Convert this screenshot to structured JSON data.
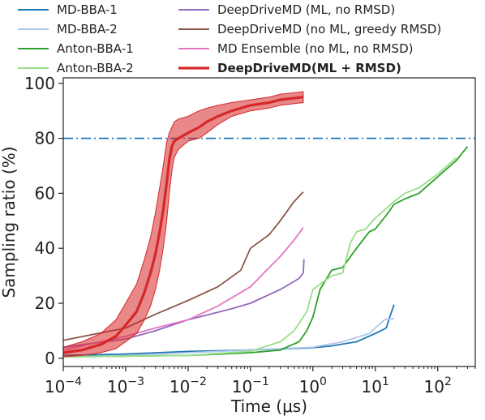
{
  "chart_data": {
    "type": "line",
    "xlabel": "Time (μs)",
    "ylabel": "Sampling ratio (%)",
    "xscale": "log",
    "xlim": [
      0.0001,
      400
    ],
    "ylim": [
      -3,
      102
    ],
    "xtick_labels": [
      {
        "v": 0.0001,
        "base": "10",
        "exp": "−4"
      },
      {
        "v": 0.001,
        "base": "10",
        "exp": "−3"
      },
      {
        "v": 0.01,
        "base": "10",
        "exp": "−2"
      },
      {
        "v": 0.1,
        "base": "10",
        "exp": "−1"
      },
      {
        "v": 1,
        "base": "10",
        "exp": "0"
      },
      {
        "v": 10,
        "base": "10",
        "exp": "1"
      },
      {
        "v": 100,
        "base": "10",
        "exp": "2"
      }
    ],
    "yticks": [
      0,
      20,
      40,
      60,
      80,
      100
    ],
    "hline": {
      "y": 80,
      "color": "#1f77b4",
      "style": "dashdot"
    },
    "legend_placement": "top",
    "series": [
      {
        "name": "MD-BBA-1",
        "color": "#1f77b4",
        "width": 1.8,
        "x": [
          0.0001,
          0.001,
          0.01,
          0.1,
          1,
          2,
          5,
          10,
          15,
          17,
          19,
          20
        ],
        "y": [
          1,
          1.5,
          2.5,
          3,
          3.8,
          4.5,
          6,
          9,
          11,
          15,
          18,
          19.5
        ]
      },
      {
        "name": "MD-BBA-2",
        "color": "#aec7e8",
        "width": 1.8,
        "x": [
          0.0001,
          0.001,
          0.01,
          0.1,
          1,
          3,
          8,
          10,
          14,
          20
        ],
        "y": [
          0.5,
          1,
          2,
          3,
          4,
          6,
          9,
          11,
          14,
          14.5
        ]
      },
      {
        "name": "Anton-BBA-1",
        "color": "#2ca02c",
        "width": 1.8,
        "x": [
          0.0001,
          0.01,
          0.1,
          0.3,
          0.6,
          0.8,
          1,
          1.3,
          2,
          3,
          5,
          8,
          10,
          15,
          20,
          30,
          50,
          100,
          200,
          300
        ],
        "y": [
          0.5,
          1,
          2,
          3,
          6,
          10,
          15,
          25,
          32,
          33,
          40,
          46,
          47,
          52,
          56,
          58,
          60,
          66,
          72,
          77
        ]
      },
      {
        "name": "Anton-BBA-2",
        "color": "#98df8a",
        "width": 1.8,
        "x": [
          0.0001,
          0.01,
          0.1,
          0.3,
          0.5,
          0.8,
          1,
          2,
          3,
          4,
          5,
          7,
          10,
          20,
          30,
          50,
          100,
          200
        ],
        "y": [
          0.5,
          1,
          2.5,
          6,
          10,
          17,
          25,
          30,
          31,
          42,
          46,
          47,
          51,
          57,
          60,
          62,
          67,
          73
        ]
      },
      {
        "name": "DeepDriveMD (ML, no RMSD)",
        "color": "#9467bd",
        "width": 1.8,
        "x": [
          0.0001,
          0.001,
          0.003,
          0.01,
          0.05,
          0.1,
          0.3,
          0.6,
          0.7,
          0.72
        ],
        "y": [
          4,
          7,
          10,
          14,
          18,
          20,
          25,
          29,
          31,
          36
        ]
      },
      {
        "name": "DeepDriveMD (no ML, greedy RMSD)",
        "color": "#8c564b",
        "width": 1.8,
        "x": [
          0.0001,
          0.001,
          0.003,
          0.01,
          0.03,
          0.07,
          0.1,
          0.2,
          0.3,
          0.5,
          0.7
        ],
        "y": [
          6.5,
          11,
          16,
          21,
          26,
          32,
          40,
          45,
          50,
          57,
          60.5
        ]
      },
      {
        "name": "MD Ensemble (no ML, no RMSD)",
        "color": "#e377c2",
        "width": 1.8,
        "x": [
          0.0001,
          0.001,
          0.003,
          0.01,
          0.03,
          0.1,
          0.2,
          0.3,
          0.5,
          0.7
        ],
        "y": [
          3,
          8,
          11,
          14,
          19,
          26,
          33,
          37,
          43,
          47.5
        ]
      },
      {
        "name": "DeepDriveMD(ML + RMSD)",
        "color": "#d62728",
        "width": 3.2,
        "bold": true,
        "x": [
          0.0001,
          0.0002,
          0.0004,
          0.0007,
          0.001,
          0.0015,
          0.002,
          0.0025,
          0.003,
          0.0035,
          0.004,
          0.0045,
          0.005,
          0.0055,
          0.006,
          0.007,
          0.01,
          0.015,
          0.02,
          0.03,
          0.05,
          0.1,
          0.2,
          0.3,
          0.7
        ],
        "y": [
          2,
          3,
          5,
          8,
          12,
          17,
          24,
          31,
          38,
          46,
          54,
          63,
          72,
          77,
          79,
          80,
          82,
          84,
          86,
          88,
          90,
          92,
          93,
          94,
          95
        ],
        "band_lower": [
          0.5,
          1,
          2,
          3.5,
          6,
          9,
          14,
          19,
          25,
          32,
          40,
          49,
          60,
          68,
          73,
          76,
          79,
          80,
          82,
          85,
          88,
          90,
          91,
          92,
          93
        ],
        "band_upper": [
          4,
          6,
          9,
          14,
          20,
          27,
          36,
          44,
          53,
          62,
          70,
          78,
          82,
          84,
          86,
          87,
          88,
          90,
          91,
          92,
          93,
          94,
          95,
          96,
          97
        ]
      }
    ]
  }
}
